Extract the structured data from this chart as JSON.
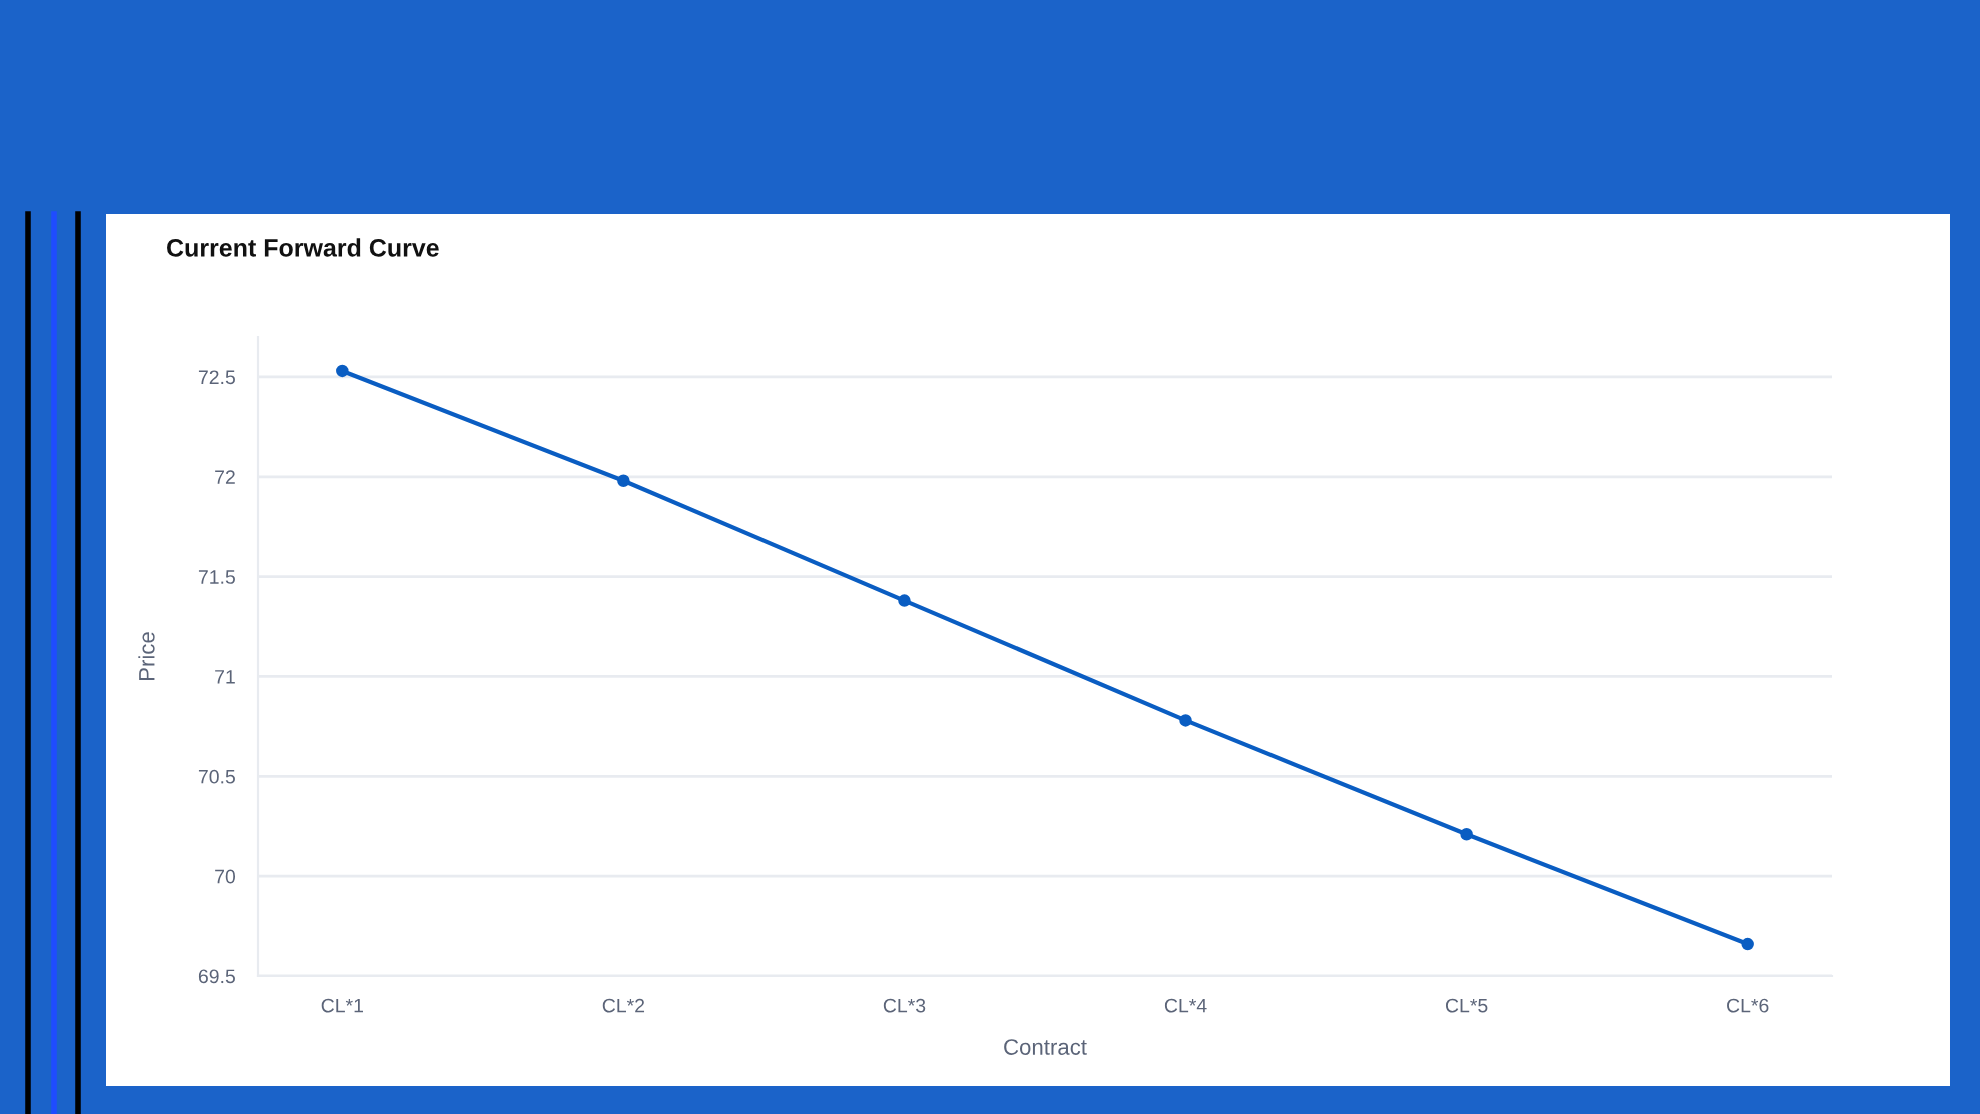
{
  "chart_data": {
    "type": "line",
    "title": "Current Forward Curve",
    "xlabel": "Contract",
    "ylabel": "Price",
    "categories": [
      "CL*1",
      "CL*2",
      "CL*3",
      "CL*4",
      "CL*5",
      "CL*6"
    ],
    "series": [
      {
        "color": "#0a5dc2",
        "values": [
          72.53,
          71.98,
          71.38,
          70.78,
          70.21,
          69.66
        ]
      }
    ],
    "ylim": [
      69.5,
      72.7
    ],
    "yticks": [
      69.5,
      70,
      70.5,
      71,
      71.5,
      72,
      72.5
    ],
    "grid": "y",
    "marker": "circle",
    "line_style": "solid"
  }
}
